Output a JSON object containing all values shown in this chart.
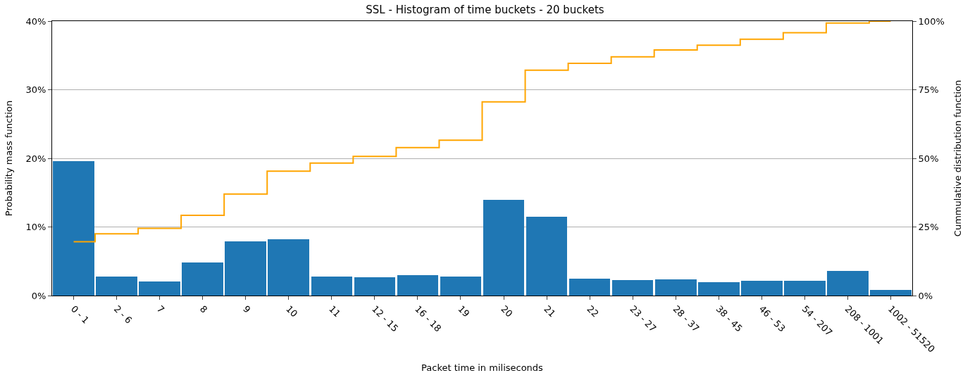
{
  "chart_data": {
    "type": "bar",
    "title": "SSL - Histogram of time buckets - 20 buckets",
    "xlabel": "Packet time in miliseconds",
    "ylabel": "Probability mass function",
    "y2label": "Cummulative distribution function",
    "categories": [
      "0 - 1",
      "2 - 6",
      "7",
      "8",
      "9",
      "10",
      "11",
      "12 - 15",
      "16 - 18",
      "19",
      "20",
      "21",
      "22",
      "23 - 27",
      "28 - 37",
      "38 - 45",
      "46 - 53",
      "54 - 207",
      "208 - 1001",
      "1002 - 51520"
    ],
    "series": [
      {
        "color": "#1f77b4",
        "values": [
          19.6,
          2.8,
          2.1,
          4.8,
          7.9,
          8.2,
          2.8,
          2.7,
          3.0,
          2.8,
          14.0,
          11.5,
          2.5,
          2.3,
          2.4,
          2.0,
          2.2,
          2.2,
          3.6,
          0.8
        ]
      },
      {
        "type": "step",
        "axis": "y2",
        "color": "#ffa500",
        "values": [
          19.6,
          22.5,
          24.5,
          29.2,
          37.0,
          45.3,
          48.3,
          50.7,
          53.9,
          56.6,
          70.6,
          82.1,
          84.6,
          87.0,
          89.5,
          91.2,
          93.4,
          95.8,
          99.3,
          100
        ]
      }
    ],
    "ylim": [
      0,
      40
    ],
    "yticks": [
      {
        "value": 0,
        "label": "0%"
      },
      {
        "value": 10,
        "label": "10%"
      },
      {
        "value": 20,
        "label": "20%"
      },
      {
        "value": 30,
        "label": "30%"
      },
      {
        "value": 40,
        "label": "40%"
      }
    ],
    "y2lim": [
      0,
      100
    ],
    "y2ticks": [
      {
        "value": 0,
        "label": "0%"
      },
      {
        "value": 25,
        "label": "25%"
      },
      {
        "value": 50,
        "label": "50%"
      },
      {
        "value": 75,
        "label": "75%"
      },
      {
        "value": 100,
        "label": "100%"
      }
    ],
    "grid": "y"
  }
}
